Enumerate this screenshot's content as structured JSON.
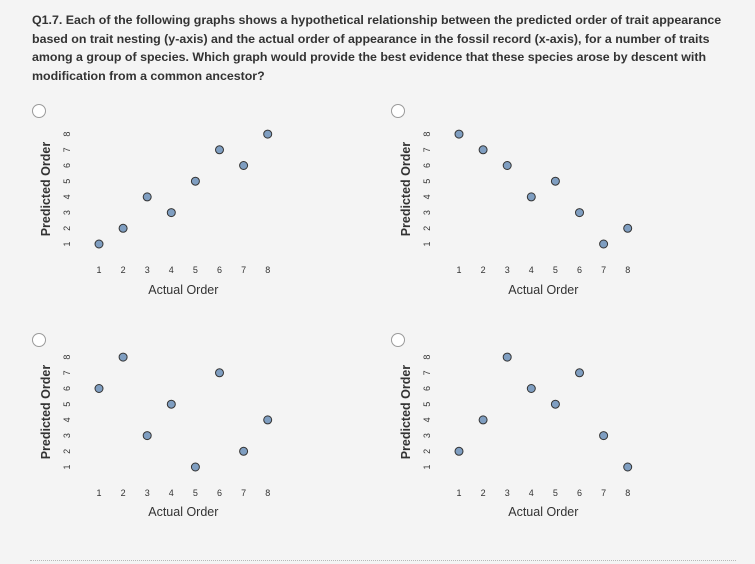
{
  "question": {
    "text": "Q1.7. Each of the following graphs shows a hypothetical relationship between the predicted order of trait appearance based on trait nesting (y-axis) and the actual order of appearance in the fossil record (x-axis), for a number of traits among a group of species. Which graph would provide the best evidence that these species arose by descent with modification from a common ancestor?"
  },
  "chart_data": [
    {
      "type": "scatter",
      "title": "",
      "xlabel": "Actual Order",
      "ylabel": "Predicted Order",
      "x_ticks": [
        "1",
        "2",
        "3",
        "4",
        "5",
        "6",
        "7",
        "8"
      ],
      "y_ticks": [
        "1",
        "2",
        "3",
        "4",
        "5",
        "6",
        "7",
        "8"
      ],
      "xlim": [
        1,
        8
      ],
      "ylim": [
        1,
        8
      ],
      "grid": false,
      "x": [
        1,
        2,
        3,
        4,
        5,
        6,
        7,
        8
      ],
      "y": [
        1,
        2,
        4,
        3,
        5,
        7,
        6,
        8
      ]
    },
    {
      "type": "scatter",
      "title": "",
      "xlabel": "Actual Order",
      "ylabel": "Predicted Order",
      "x_ticks": [
        "1",
        "2",
        "3",
        "4",
        "5",
        "6",
        "7",
        "8"
      ],
      "y_ticks": [
        "1",
        "2",
        "3",
        "4",
        "5",
        "6",
        "7",
        "8"
      ],
      "xlim": [
        1,
        8
      ],
      "ylim": [
        1,
        8
      ],
      "grid": false,
      "x": [
        1,
        2,
        3,
        4,
        5,
        6,
        7,
        8
      ],
      "y": [
        8,
        7,
        6,
        4,
        5,
        3,
        1,
        2
      ]
    },
    {
      "type": "scatter",
      "title": "",
      "xlabel": "Actual Order",
      "ylabel": "Predicted Order",
      "x_ticks": [
        "1",
        "2",
        "3",
        "4",
        "5",
        "6",
        "7",
        "8"
      ],
      "y_ticks": [
        "1",
        "2",
        "3",
        "4",
        "5",
        "6",
        "7",
        "8"
      ],
      "xlim": [
        1,
        8
      ],
      "ylim": [
        1,
        8
      ],
      "grid": false,
      "x": [
        1,
        2,
        3,
        4,
        5,
        6,
        7,
        8
      ],
      "y": [
        6,
        8,
        3,
        5,
        1,
        7,
        2,
        4
      ]
    },
    {
      "type": "scatter",
      "title": "",
      "xlabel": "Actual Order",
      "ylabel": "Predicted Order",
      "x_ticks": [
        "1",
        "2",
        "3",
        "4",
        "5",
        "6",
        "7",
        "8"
      ],
      "y_ticks": [
        "1",
        "2",
        "3",
        "4",
        "5",
        "6",
        "7",
        "8"
      ],
      "xlim": [
        1,
        8
      ],
      "ylim": [
        1,
        8
      ],
      "grid": false,
      "x": [
        1,
        2,
        3,
        4,
        5,
        6,
        7,
        8
      ],
      "y": [
        2,
        4,
        8,
        6,
        5,
        7,
        3,
        1
      ]
    }
  ],
  "colors": {
    "point_fill": "#7f9ec1",
    "point_stroke": "#333333",
    "text": "#333333",
    "background": "#f4f4f4"
  }
}
